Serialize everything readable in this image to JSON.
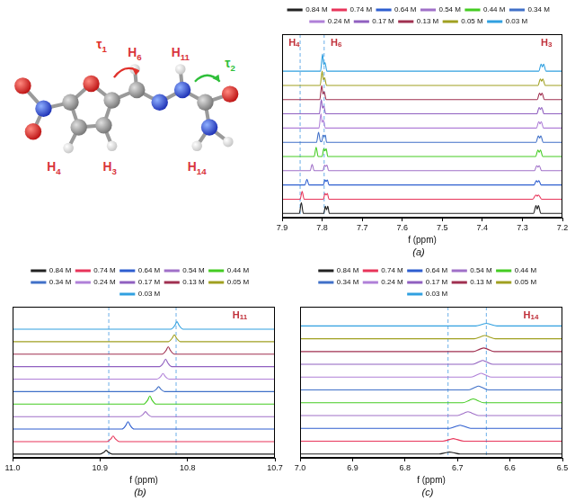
{
  "molecule": {
    "labels": [
      "H4",
      "H6",
      "H11",
      "H3",
      "H14"
    ],
    "color": "#d9343c",
    "torsions": [
      {
        "text": "τ1",
        "color": "#e0302a"
      },
      {
        "text": "τ2",
        "color": "#2fbf3a"
      }
    ]
  },
  "chart_data": [
    {
      "type": "line",
      "title": "(a)",
      "x_label": "f (ppm)",
      "xlim": [
        7.9,
        7.2
      ],
      "xticks": [
        7.9,
        7.8,
        7.7,
        7.6,
        7.5,
        7.4,
        7.3,
        7.2
      ],
      "ylim": [
        -0.3,
        12.6
      ],
      "tick_labels": "x",
      "grid": false,
      "legend": "top",
      "reference_lines": [
        7.855,
        7.795
      ],
      "annotations": [
        {
          "text": "H4",
          "x": 7.87,
          "color": "#c0303a"
        },
        {
          "text": "H6",
          "x": 7.765,
          "color": "#c0303a"
        },
        {
          "text": "H3",
          "x": 7.24,
          "color": "#c0303a"
        }
      ],
      "series": [
        {
          "name": "0.84 M",
          "color": "#222222",
          "x": [
            7.2,
            7.254,
            7.26,
            7.263,
            7.266,
            7.272,
            7.782,
            7.786,
            7.789,
            7.792,
            7.796,
            7.847,
            7.852,
            7.857,
            7.9
          ],
          "values": [
            0,
            0,
            0.55,
            0.3,
            0.55,
            0,
            0,
            0.5,
            0.25,
            0.5,
            0,
            0,
            0.75,
            0,
            0
          ]
        },
        {
          "name": "0.74 M",
          "color": "#e8355a",
          "x": [
            7.2,
            7.252,
            7.26,
            7.263,
            7.266,
            7.274,
            7.783,
            7.787,
            7.79,
            7.793,
            7.797,
            7.845,
            7.85,
            7.855,
            7.9
          ],
          "values": [
            1,
            1,
            1.3,
            1.22,
            1.3,
            1,
            1,
            1.4,
            1.3,
            1.4,
            1,
            1,
            1.55,
            1,
            1
          ]
        },
        {
          "name": "0.64 M",
          "color": "#2f5fd0",
          "x": [
            7.2,
            7.253,
            7.259,
            7.262,
            7.265,
            7.271,
            7.783,
            7.787,
            7.79,
            7.793,
            7.797,
            7.833,
            7.838,
            7.843,
            7.9
          ],
          "values": [
            2,
            2,
            2.3,
            2.2,
            2.3,
            2,
            2,
            2.35,
            2.25,
            2.35,
            2,
            2,
            2.4,
            2,
            2
          ]
        },
        {
          "name": "0.54 M",
          "color": "#a070c8",
          "x": [
            7.2,
            7.252,
            7.258,
            7.261,
            7.264,
            7.27,
            7.784,
            7.788,
            7.791,
            7.794,
            7.798,
            7.82,
            7.825,
            7.83,
            7.9
          ],
          "values": [
            3,
            3,
            3.35,
            3.25,
            3.35,
            3,
            3,
            3.4,
            3.3,
            3.4,
            3,
            3,
            3.45,
            3,
            3
          ]
        },
        {
          "name": "0.44 M",
          "color": "#44cc22",
          "x": [
            7.2,
            7.249,
            7.255,
            7.258,
            7.261,
            7.267,
            7.786,
            7.79,
            7.793,
            7.796,
            7.8,
            7.81,
            7.815,
            7.82,
            7.9
          ],
          "values": [
            4,
            4,
            4.45,
            4.3,
            4.45,
            4,
            4,
            4.55,
            4.4,
            4.55,
            4,
            4,
            4.65,
            4,
            4
          ]
        },
        {
          "name": "0.34 M",
          "color": "#4070c8",
          "x": [
            7.2,
            7.248,
            7.254,
            7.257,
            7.26,
            7.266,
            7.789,
            7.792,
            7.795,
            7.798,
            7.801,
            7.804,
            7.809,
            7.814,
            7.9
          ],
          "values": [
            5,
            5,
            5.45,
            5.3,
            5.45,
            5,
            5,
            5.5,
            5.4,
            5.5,
            5.05,
            5.05,
            5.7,
            5,
            5
          ]
        },
        {
          "name": "0.24 M",
          "color": "#b080d8",
          "x": [
            7.2,
            7.247,
            7.253,
            7.256,
            7.259,
            7.265,
            7.792,
            7.797,
            7.8,
            7.803,
            7.808,
            7.9
          ],
          "values": [
            6,
            6,
            6.45,
            6.3,
            6.45,
            6,
            6,
            6.55,
            6.4,
            7.0,
            6,
            6
          ]
        },
        {
          "name": "0.17 M",
          "color": "#9060c0",
          "x": [
            7.2,
            7.246,
            7.252,
            7.255,
            7.258,
            7.264,
            7.791,
            7.796,
            7.799,
            7.802,
            7.807,
            7.9
          ],
          "values": [
            7,
            7,
            7.45,
            7.3,
            7.45,
            7,
            7,
            7.55,
            7.4,
            8.0,
            7,
            7
          ]
        },
        {
          "name": "0.13 M",
          "color": "#a03050",
          "x": [
            7.2,
            7.245,
            7.251,
            7.254,
            7.257,
            7.263,
            7.79,
            7.795,
            7.798,
            7.801,
            7.806,
            7.9
          ],
          "values": [
            8,
            8,
            8.45,
            8.3,
            8.45,
            8,
            8,
            8.55,
            8.4,
            9.0,
            8,
            8
          ]
        },
        {
          "name": "0.05 M",
          "color": "#a0a020",
          "x": [
            7.2,
            7.243,
            7.249,
            7.252,
            7.255,
            7.261,
            7.789,
            7.794,
            7.797,
            7.8,
            7.805,
            7.9
          ],
          "values": [
            9,
            9,
            9.45,
            9.3,
            9.45,
            9,
            9,
            9.55,
            9.4,
            10.0,
            9,
            9
          ]
        },
        {
          "name": "0.03 M",
          "color": "#30a0e0",
          "x": [
            7.2,
            7.241,
            7.247,
            7.25,
            7.253,
            7.259,
            7.788,
            7.793,
            7.796,
            7.799,
            7.804,
            7.9
          ],
          "values": [
            10,
            10,
            10.5,
            10.3,
            10.5,
            10,
            10,
            10.6,
            10.45,
            11.2,
            10,
            10
          ]
        }
      ]
    },
    {
      "type": "line",
      "title": "(b)",
      "x_label": "f (ppm)",
      "xlim": [
        11.0,
        10.7
      ],
      "xticks": [
        {
          "value": 11.0,
          "label": "11.0"
        },
        10.9,
        10.8,
        10.7
      ],
      "ylim": [
        -0.3,
        11.8
      ],
      "tick_labels": "x",
      "grid": false,
      "legend": "top",
      "reference_lines": [
        10.89,
        10.813
      ],
      "annotations": [
        {
          "text": "H11",
          "x": 10.74,
          "color": "#c0303a"
        }
      ],
      "series": [
        {
          "name": "0.84 M",
          "color": "#222222",
          "x": [
            10.7,
            10.886,
            10.8905,
            10.893,
            10.8955,
            10.9,
            11.0
          ],
          "values": [
            0,
            0,
            0.15,
            0.3,
            0.15,
            0,
            0
          ]
        },
        {
          "name": "0.74 M",
          "color": "#e8355a",
          "x": [
            10.7,
            10.878,
            10.8825,
            10.885,
            10.8875,
            10.892,
            11.0
          ],
          "values": [
            1,
            1,
            1.22,
            1.45,
            1.22,
            1,
            1
          ]
        },
        {
          "name": "0.64 M",
          "color": "#2f5fd0",
          "x": [
            10.7,
            10.861,
            10.8655,
            10.868,
            10.8705,
            10.875,
            11.0
          ],
          "values": [
            2,
            2,
            2.3,
            2.6,
            2.3,
            2,
            2
          ]
        },
        {
          "name": "0.54 M",
          "color": "#a070c8",
          "x": [
            10.7,
            10.841,
            10.8455,
            10.848,
            10.8505,
            10.855,
            11.0
          ],
          "values": [
            3,
            3,
            3.2,
            3.4,
            3.2,
            3,
            3
          ]
        },
        {
          "name": "0.44 M",
          "color": "#44cc22",
          "x": [
            10.7,
            10.836,
            10.8405,
            10.843,
            10.8455,
            10.85,
            11.0
          ],
          "values": [
            4,
            4,
            4.32,
            4.65,
            4.32,
            4,
            4
          ]
        },
        {
          "name": "0.34 M",
          "color": "#4070c8",
          "x": [
            10.7,
            10.826,
            10.8305,
            10.833,
            10.8355,
            10.84,
            11.0
          ],
          "values": [
            5,
            5,
            5.2,
            5.4,
            5.2,
            5,
            5
          ]
        },
        {
          "name": "0.24 M",
          "color": "#b080d8",
          "x": [
            10.7,
            10.821,
            10.8255,
            10.828,
            10.8305,
            10.835,
            11.0
          ],
          "values": [
            6,
            6,
            6.22,
            6.45,
            6.22,
            6,
            6
          ]
        },
        {
          "name": "0.17 M",
          "color": "#9060c0",
          "x": [
            10.7,
            10.818,
            10.8225,
            10.825,
            10.8275,
            10.832,
            11.0
          ],
          "values": [
            7,
            7,
            7.3,
            7.6,
            7.3,
            7,
            7
          ]
        },
        {
          "name": "0.13 M",
          "color": "#a03050",
          "x": [
            10.7,
            10.815,
            10.8195,
            10.822,
            10.8245,
            10.829,
            11.0
          ],
          "values": [
            8,
            8,
            8.3,
            8.6,
            8.3,
            8,
            8
          ]
        },
        {
          "name": "0.05 M",
          "color": "#a0a020",
          "x": [
            10.7,
            10.808,
            10.8125,
            10.815,
            10.8175,
            10.822,
            11.0
          ],
          "values": [
            9,
            9,
            9.28,
            9.55,
            9.28,
            9,
            9
          ]
        },
        {
          "name": "0.03 M",
          "color": "#30a0e0",
          "x": [
            10.7,
            10.805,
            10.8095,
            10.812,
            10.8145,
            10.819,
            11.0
          ],
          "values": [
            10,
            10,
            10.3,
            10.6,
            10.3,
            10,
            10
          ]
        }
      ]
    },
    {
      "type": "line",
      "title": "(c)",
      "x_label": "f (ppm)",
      "xlim": [
        7.0,
        6.5
      ],
      "xticks": [
        {
          "value": 7.0,
          "label": "7.0"
        },
        6.9,
        6.8,
        6.7,
        6.6,
        6.5
      ],
      "ylim": [
        -0.3,
        11.5
      ],
      "tick_labels": "x",
      "grid": false,
      "legend": "top",
      "reference_lines": [
        6.718,
        6.645
      ],
      "annotations": [
        {
          "text": "H14",
          "x": 6.56,
          "color": "#c0303a"
        }
      ],
      "series": [
        {
          "name": "0.84 M",
          "color": "#222222",
          "x": [
            6.5,
            6.695,
            6.708,
            6.715,
            6.722,
            6.735,
            7.0
          ],
          "values": [
            0,
            0,
            0.1,
            0.15,
            0.1,
            0,
            0
          ]
        },
        {
          "name": "0.74 M",
          "color": "#e8355a",
          "x": [
            6.5,
            6.688,
            6.701,
            6.708,
            6.715,
            6.728,
            7.0
          ],
          "values": [
            1,
            1,
            1.13,
            1.2,
            1.13,
            1,
            1
          ]
        },
        {
          "name": "0.64 M",
          "color": "#2f5fd0",
          "x": [
            6.5,
            6.675,
            6.688,
            6.695,
            6.702,
            6.715,
            7.0
          ],
          "values": [
            2,
            2,
            2.17,
            2.25,
            2.17,
            2,
            2
          ]
        },
        {
          "name": "0.54 M",
          "color": "#a070c8",
          "x": [
            6.5,
            6.66,
            6.673,
            6.68,
            6.687,
            6.7,
            7.0
          ],
          "values": [
            3,
            3,
            3.2,
            3.3,
            3.2,
            3,
            3
          ]
        },
        {
          "name": "0.44 M",
          "color": "#44cc22",
          "x": [
            6.5,
            6.65,
            6.663,
            6.67,
            6.677,
            6.69,
            7.0
          ],
          "values": [
            4,
            4,
            4.2,
            4.3,
            4.2,
            4,
            4
          ]
        },
        {
          "name": "0.34 M",
          "color": "#4070c8",
          "x": [
            6.5,
            6.64,
            6.653,
            6.66,
            6.667,
            6.68,
            7.0
          ],
          "values": [
            5,
            5,
            5.2,
            5.3,
            5.2,
            5,
            5
          ]
        },
        {
          "name": "0.24 M",
          "color": "#b080d8",
          "x": [
            6.5,
            6.635,
            6.648,
            6.655,
            6.662,
            6.675,
            7.0
          ],
          "values": [
            6,
            6,
            6.2,
            6.3,
            6.2,
            6,
            6
          ]
        },
        {
          "name": "0.17 M",
          "color": "#9060c0",
          "x": [
            6.5,
            6.632,
            6.645,
            6.652,
            6.659,
            6.672,
            7.0
          ],
          "values": [
            7,
            7,
            7.2,
            7.3,
            7.2,
            7,
            7
          ]
        },
        {
          "name": "0.13 M",
          "color": "#a03050",
          "x": [
            6.5,
            6.63,
            6.643,
            6.65,
            6.657,
            6.67,
            7.0
          ],
          "values": [
            8,
            8,
            8.19,
            8.28,
            8.19,
            8,
            8
          ]
        },
        {
          "name": "0.05 M",
          "color": "#a0a020",
          "x": [
            6.5,
            6.628,
            6.641,
            6.648,
            6.655,
            6.668,
            7.0
          ],
          "values": [
            9,
            9,
            9.17,
            9.25,
            9.17,
            9,
            9
          ]
        },
        {
          "name": "0.03 M",
          "color": "#30a0e0",
          "x": [
            6.5,
            6.625,
            6.638,
            6.645,
            6.652,
            6.665,
            7.0
          ],
          "values": [
            10,
            10,
            10.13,
            10.2,
            10.13,
            10,
            10
          ]
        }
      ]
    }
  ]
}
